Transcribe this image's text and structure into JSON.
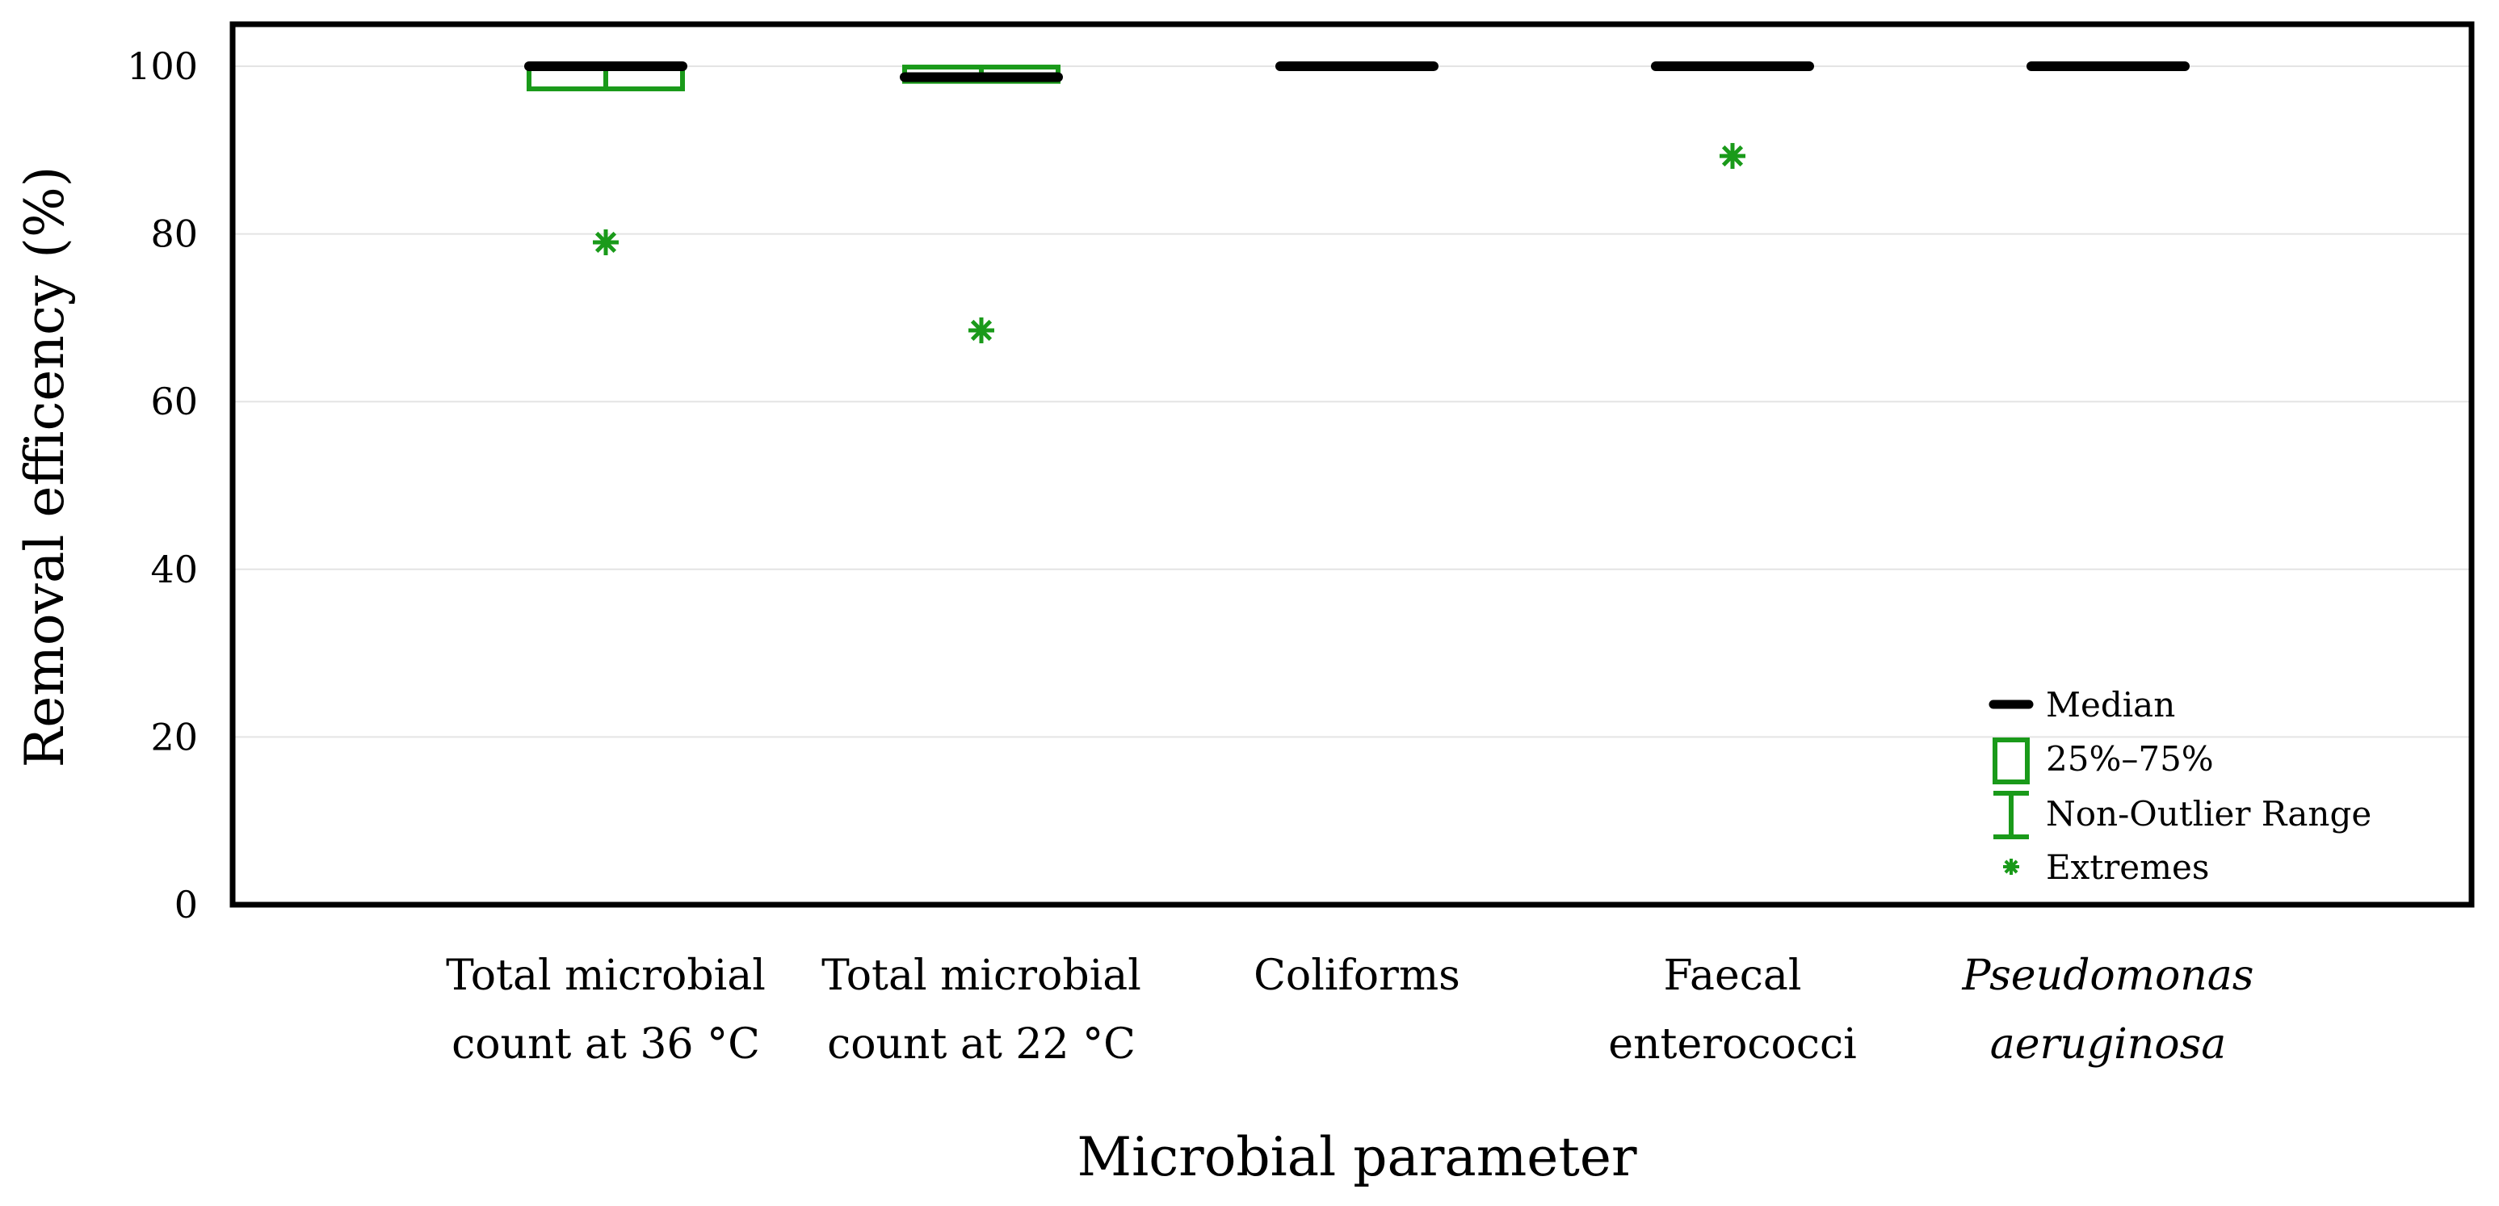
{
  "chart_data": {
    "type": "box",
    "title": "",
    "xlabel": "Microbial parameter",
    "ylabel": "Removal efficency (%)",
    "ylim": [
      0,
      100
    ],
    "yticks": [
      0,
      20,
      40,
      60,
      80,
      100
    ],
    "grid": true,
    "categories": [
      {
        "line1": "Total microbial",
        "line2": "count at 36 °C",
        "italic": false
      },
      {
        "line1": "Total microbial",
        "line2": "count at 22 °C",
        "italic": false
      },
      {
        "line1": "Coliforms",
        "line2": "",
        "italic": false
      },
      {
        "line1": "Faecal",
        "line2": "enterococci",
        "italic": false
      },
      {
        "line1": "Pseudomonas",
        "line2": "aeruginosa",
        "italic": true
      }
    ],
    "boxes": [
      {
        "median": 100,
        "q1": 97.3,
        "q3": 100,
        "whisker_low": 97.3,
        "whisker_high": 100,
        "extremes": [
          79
        ]
      },
      {
        "median": 98.7,
        "q1": 98.2,
        "q3": 99.9,
        "whisker_low": 98.2,
        "whisker_high": 99.9,
        "extremes": [
          68.5
        ]
      },
      {
        "median": 100,
        "q1": 100,
        "q3": 100,
        "whisker_low": 100,
        "whisker_high": 100,
        "extremes": []
      },
      {
        "median": 100,
        "q1": 100,
        "q3": 100,
        "whisker_low": 100,
        "whisker_high": 100,
        "extremes": [
          89.3
        ]
      },
      {
        "median": 100,
        "q1": 100,
        "q3": 100,
        "whisker_low": 100,
        "whisker_high": 100,
        "extremes": []
      }
    ],
    "legend": {
      "position": "bottom-right",
      "items": [
        "Median",
        "25%–75%",
        "Non-Outlier Range",
        "Extremes"
      ]
    },
    "colors": {
      "median": "#000000",
      "box": "#1a9a1a",
      "extreme": "#1a9a1a",
      "grid": "#e4e4e4",
      "frame": "#000000"
    }
  }
}
